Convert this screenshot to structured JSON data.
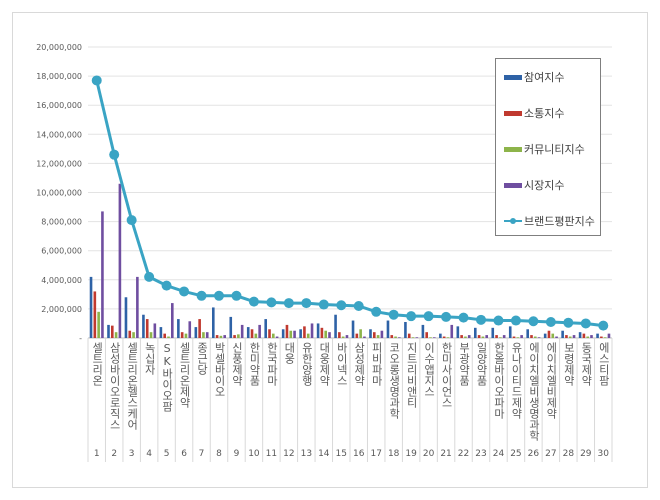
{
  "chart_data": {
    "type": "bar+line",
    "ylim": [
      0,
      20000000
    ],
    "yticks": [
      "-",
      "2,000,000",
      "4,000,000",
      "6,000,000",
      "8,000,000",
      "10,000,000",
      "12,000,000",
      "14,000,000",
      "16,000,000",
      "18,000,000",
      "20,000,000"
    ],
    "grid": true,
    "legend_position": "right",
    "categories": [
      "셀트리온",
      "삼성바이오로직스",
      "셀트리온헬스케어",
      "녹십자",
      "SK바이오팜",
      "셀트리온제약",
      "종근당",
      "박셀바이오",
      "신풍제약",
      "한미약품",
      "한국파마",
      "대웅",
      "유한양행",
      "대웅제약",
      "바이넥스",
      "삼성제약",
      "피비파마",
      "코오롱생명과학",
      "지트리비앤티",
      "이수앱지스",
      "한미사이언스",
      "부광약품",
      "일양약품",
      "한올바이오파마",
      "유나이티드제약",
      "에이치엘비생명과학",
      "에이치엘비제약",
      "보령제약",
      "동국제약",
      "에스티팜"
    ],
    "ranks": [
      "1",
      "2",
      "3",
      "4",
      "5",
      "6",
      "7",
      "8",
      "9",
      "10",
      "11",
      "12",
      "13",
      "14",
      "15",
      "16",
      "17",
      "18",
      "19",
      "20",
      "21",
      "22",
      "23",
      "24",
      "25",
      "26",
      "27",
      "28",
      "29",
      "30"
    ],
    "series": [
      {
        "name": "참여지수",
        "type": "bar",
        "color": "#2e62a6",
        "values": [
          4200000,
          900000,
          2800000,
          1600000,
          750000,
          1300000,
          750000,
          2100000,
          1450000,
          750000,
          1300000,
          600000,
          600000,
          1000000,
          1600000,
          1200000,
          600000,
          1200000,
          1100000,
          900000,
          300000,
          800000,
          700000,
          700000,
          800000,
          600000,
          300000,
          500000,
          400000,
          300000
        ]
      },
      {
        "name": "소통지수",
        "type": "bar",
        "color": "#c0392f",
        "values": [
          3200000,
          850000,
          500000,
          1300000,
          300000,
          400000,
          1300000,
          200000,
          200000,
          600000,
          600000,
          900000,
          800000,
          700000,
          400000,
          300000,
          400000,
          200000,
          300000,
          400000,
          100000,
          200000,
          200000,
          200000,
          100000,
          200000,
          500000,
          200000,
          300000,
          100000
        ]
      },
      {
        "name": "커뮤니티지수",
        "type": "bar",
        "color": "#8db44a",
        "values": [
          1800000,
          400000,
          400000,
          400000,
          100000,
          300000,
          400000,
          150000,
          250000,
          300000,
          300000,
          500000,
          300000,
          500000,
          100000,
          600000,
          200000,
          100000,
          50000,
          50000,
          50000,
          100000,
          100000,
          50000,
          50000,
          100000,
          300000,
          100000,
          100000,
          50000
        ]
      },
      {
        "name": "시장지수",
        "type": "bar",
        "color": "#6f4ea0",
        "values": [
          8700000,
          10600000,
          4200000,
          1000000,
          2400000,
          1150000,
          400000,
          200000,
          900000,
          900000,
          100000,
          500000,
          1000000,
          400000,
          200000,
          100000,
          500000,
          50000,
          50000,
          50000,
          900000,
          200000,
          200000,
          200000,
          200000,
          50000,
          100000,
          200000,
          200000,
          300000
        ]
      },
      {
        "name": "브랜드평판지수",
        "type": "line",
        "color": "#3aa4c4",
        "values": [
          17700000,
          12600000,
          8100000,
          4200000,
          3600000,
          3200000,
          2900000,
          2900000,
          2900000,
          2500000,
          2450000,
          2400000,
          2400000,
          2300000,
          2250000,
          2200000,
          1800000,
          1600000,
          1500000,
          1500000,
          1450000,
          1400000,
          1250000,
          1200000,
          1200000,
          1150000,
          1100000,
          1050000,
          1000000,
          850000
        ]
      }
    ]
  }
}
